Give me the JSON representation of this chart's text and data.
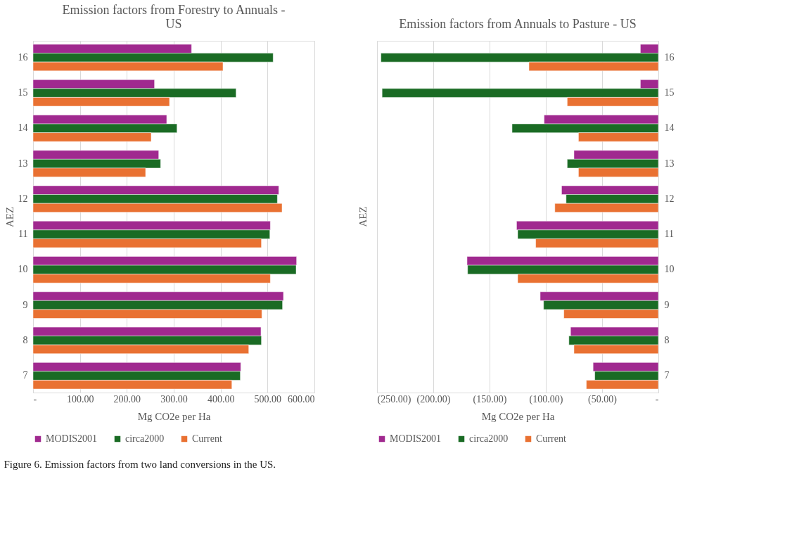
{
  "chart_data": [
    {
      "type": "bar",
      "orientation": "horizontal",
      "title": "Emission factors from Forestry to Annuals - US",
      "xlabel": "Mg CO2e per Ha",
      "ylabel": "AEZ",
      "categories": [
        "16",
        "15",
        "14",
        "13",
        "12",
        "11",
        "10",
        "9",
        "8",
        "7"
      ],
      "series": [
        {
          "name": "MODIS2001",
          "color": "#a0298f",
          "values": [
            338,
            259,
            285,
            268,
            524,
            506,
            562,
            534,
            486,
            443
          ]
        },
        {
          "name": "circa2000",
          "color": "#1a6b24",
          "values": [
            512,
            433,
            307,
            272,
            521,
            505,
            561,
            532,
            487,
            442
          ]
        },
        {
          "name": "Current",
          "color": "#e97132",
          "values": [
            405,
            291,
            252,
            240,
            531,
            487,
            506,
            488,
            460,
            424
          ]
        }
      ],
      "xlim": [
        0,
        600
      ],
      "xticks": [
        {
          "value": 0,
          "label": "-"
        },
        {
          "value": 100,
          "label": "100.00"
        },
        {
          "value": 200,
          "label": "200.00"
        },
        {
          "value": 300,
          "label": "300.00"
        },
        {
          "value": 400,
          "label": "400.00"
        },
        {
          "value": 500,
          "label": "500.00"
        },
        {
          "value": 600,
          "label": "600.00"
        }
      ],
      "grid": "x",
      "legend": "bottom",
      "annotations": [
        "Figure 6. Emission factors from two land conversions in the US."
      ]
    },
    {
      "type": "bar",
      "orientation": "horizontal",
      "title": "Emission factors from Annuals to Pasture - US",
      "xlabel": "Mg CO2e per Ha",
      "ylabel": "AEZ",
      "categories": [
        "16",
        "15",
        "14",
        "13",
        "12",
        "11",
        "10",
        "9",
        "8",
        "7"
      ],
      "series": [
        {
          "name": "MODIS2001",
          "color": "#a0298f",
          "values": [
            -16,
            -16,
            -101.5,
            -75,
            -86,
            -126,
            -170,
            -105,
            -78,
            -58
          ]
        },
        {
          "name": "circa2000",
          "color": "#1a6b24",
          "values": [
            -246.5,
            -245.5,
            -130,
            -81,
            -82,
            -125,
            -169.5,
            -102,
            -79.5,
            -56.5
          ]
        },
        {
          "name": "Current",
          "color": "#e97132",
          "values": [
            -115,
            -81,
            -71,
            -71,
            -92,
            -109,
            -125,
            -84,
            -75,
            -64
          ]
        }
      ],
      "xlim": [
        -250,
        0
      ],
      "xticks": [
        {
          "value": -250,
          "label": "(250.00)"
        },
        {
          "value": -200,
          "label": "(200.00)"
        },
        {
          "value": -150,
          "label": "(150.00)"
        },
        {
          "value": -100,
          "label": "(100.00)"
        },
        {
          "value": -50,
          "label": "(50.00)"
        },
        {
          "value": 0,
          "label": "-"
        }
      ],
      "grid": "x",
      "legend": "bottom"
    }
  ]
}
